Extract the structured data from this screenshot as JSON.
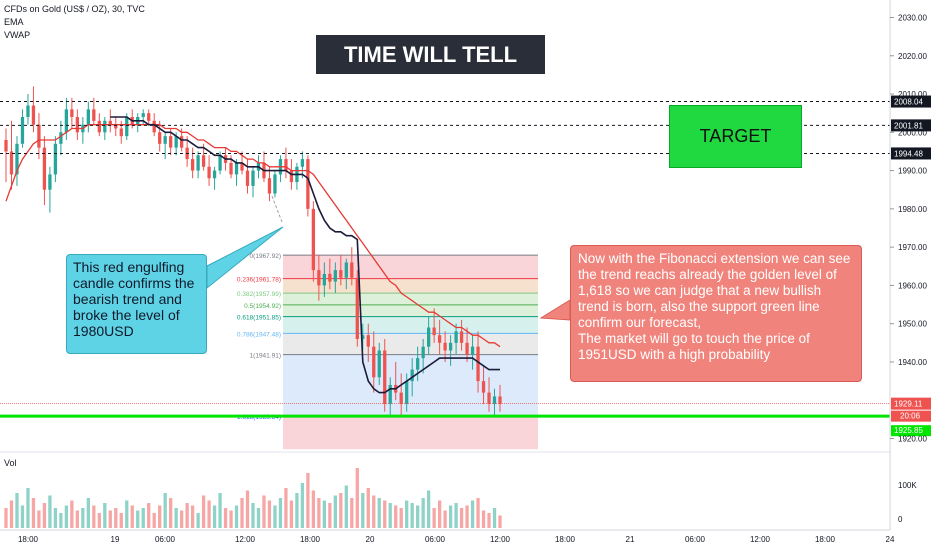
{
  "header": {
    "symbol_line": "CFDs on Gold (US$ / OZ), 30, TVC",
    "indicators": [
      "EMA",
      "VWAP"
    ],
    "volume_label": "Vol"
  },
  "annotations": {
    "title_box": "TIME WILL TELL",
    "target_box": "TARGET",
    "left_note": "This red engulfing candle confirms the bearish trend and broke the level of 1980USD",
    "right_note": "Now with the Fibonacci extension we can see the trend reachs already the golden level of 1,618 so we can judge that a new bullish trend is born, also the support green line confirm our forecast,\nThe market will go to touch the price of 1951USD with a high probability"
  },
  "colors": {
    "bull": "#26a69a",
    "bear": "#ef5350",
    "ema": "#e53935",
    "vwap": "#1b1b3a",
    "support": "#00e600",
    "target_bg": "#20d840",
    "title_bg": "#2a2e39",
    "left_note_bg": "#5fd3e6",
    "right_note_bg": "#f0847c"
  },
  "chart_data": {
    "type": "candlestick",
    "ylim": [
      1917,
      2033
    ],
    "y_ticks": [
      2030,
      2020,
      2010,
      2000,
      1990,
      1980,
      1970,
      1960,
      1950,
      1940,
      1920
    ],
    "volume_ticks": [
      "100K",
      "0"
    ],
    "x_ticks": [
      "18:00",
      "19",
      "06:00",
      "12:00",
      "18:00",
      "20",
      "06:00",
      "12:00",
      "18:00",
      "21",
      "06:00",
      "12:00",
      "18:00",
      "24"
    ],
    "price_lines": [
      {
        "label": "2008.04",
        "value": 2008.04
      },
      {
        "label": "2001.81",
        "value": 2001.81
      },
      {
        "label": "1994.48",
        "value": 1994.48
      }
    ],
    "current_price": {
      "label": "1929.11",
      "value": 1929.11
    },
    "time_tag": "20:06",
    "support_tag": "1925.85",
    "support_level": 1925.84,
    "fibonacci": [
      {
        "label": "0(1967.92)",
        "value": 1967.92,
        "color": "#787b86"
      },
      {
        "label": "0.236(1961.78)",
        "value": 1961.78,
        "color": "#f23645"
      },
      {
        "label": "0.382(1957.99)",
        "value": 1957.99,
        "color": "#81c784"
      },
      {
        "label": "0.5(1954.92)",
        "value": 1954.92,
        "color": "#4caf50"
      },
      {
        "label": "0.618(1951.85)",
        "value": 1951.85,
        "color": "#089981"
      },
      {
        "label": "0.786(1947.48)",
        "value": 1947.48,
        "color": "#64b5f6"
      },
      {
        "label": "1(1941.91)",
        "value": 1941.91,
        "color": "#787b86"
      },
      {
        "label": "1.618(1925.84)",
        "value": 1925.84,
        "color": "#2962ff"
      }
    ]
  }
}
